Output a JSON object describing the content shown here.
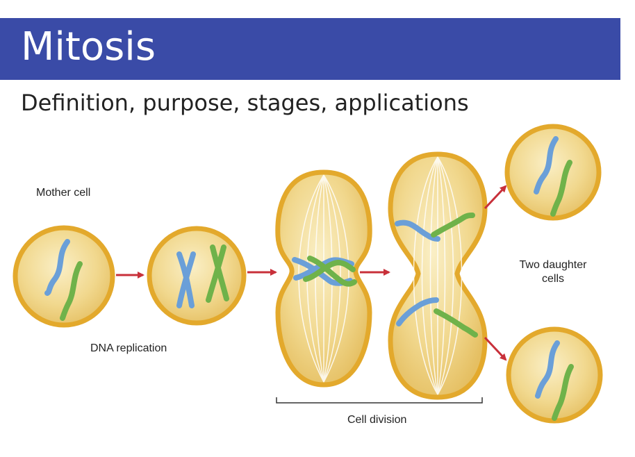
{
  "header": {
    "title": "Mitosis",
    "subtitle": "Definition, purpose, stages, applications"
  },
  "labels": {
    "mother_cell": "Mother cell",
    "dna_replication": "DNA replication",
    "two_daughter_line1": "Two daughter",
    "two_daughter_line2": "cells",
    "cell_division": "Cell division"
  },
  "colors": {
    "banner": "#3a4ba7",
    "cell_fill": "#f1d88e",
    "cell_border": "#e3a92c",
    "chromosome_blue": "#6a9fd8",
    "chromosome_green": "#6fb24a",
    "arrow": "#c8303a"
  }
}
